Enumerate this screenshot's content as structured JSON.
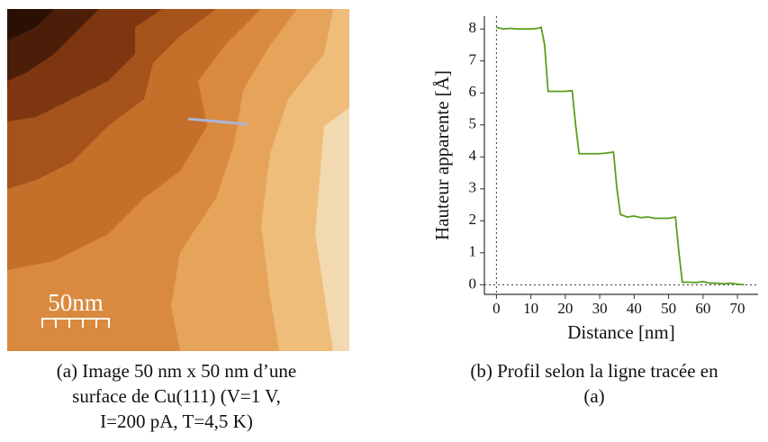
{
  "image_a": {
    "scale_label": "50nm",
    "caption_lines": [
      "(a) Image 50 nm x 50 nm d’une",
      "surface de Cu(111) (V=1 V,",
      "I=200 pA, T=4,5 K)"
    ]
  },
  "figure_b": {
    "caption_lines": [
      "(b) Profil selon la ligne tracée en",
      "(a)"
    ]
  },
  "chart_data": {
    "type": "line",
    "xlabel": "Distance [nm]",
    "ylabel": "Hauteur apparente [Å]",
    "x": [
      0,
      2,
      4,
      6,
      8,
      10,
      12,
      13,
      14,
      15,
      16,
      18,
      20,
      22,
      23,
      24,
      26,
      28,
      30,
      32,
      34,
      35,
      36,
      38,
      40,
      42,
      44,
      46,
      48,
      50,
      52,
      53,
      54,
      56,
      58,
      60,
      62,
      64,
      66,
      68,
      70,
      72
    ],
    "series": [
      {
        "color": "#5a9e1e",
        "values": [
          8.05,
          8.0,
          8.02,
          8.0,
          8.0,
          8.0,
          8.02,
          8.05,
          7.5,
          6.05,
          6.05,
          6.05,
          6.05,
          6.07,
          5.0,
          4.1,
          4.1,
          4.1,
          4.1,
          4.12,
          4.15,
          3.0,
          2.2,
          2.12,
          2.15,
          2.1,
          2.12,
          2.08,
          2.08,
          2.08,
          2.12,
          1.0,
          0.08,
          0.08,
          0.07,
          0.1,
          0.05,
          0.05,
          0.03,
          0.05,
          0.02,
          0.0
        ]
      }
    ],
    "xlim": [
      -3.5,
      76
    ],
    "ylim": [
      -0.3,
      8.4
    ],
    "xticks": [
      0,
      10,
      20,
      30,
      40,
      50,
      60,
      70
    ],
    "yticks": [
      0,
      1,
      2,
      3,
      4,
      5,
      6,
      7,
      8
    ]
  }
}
